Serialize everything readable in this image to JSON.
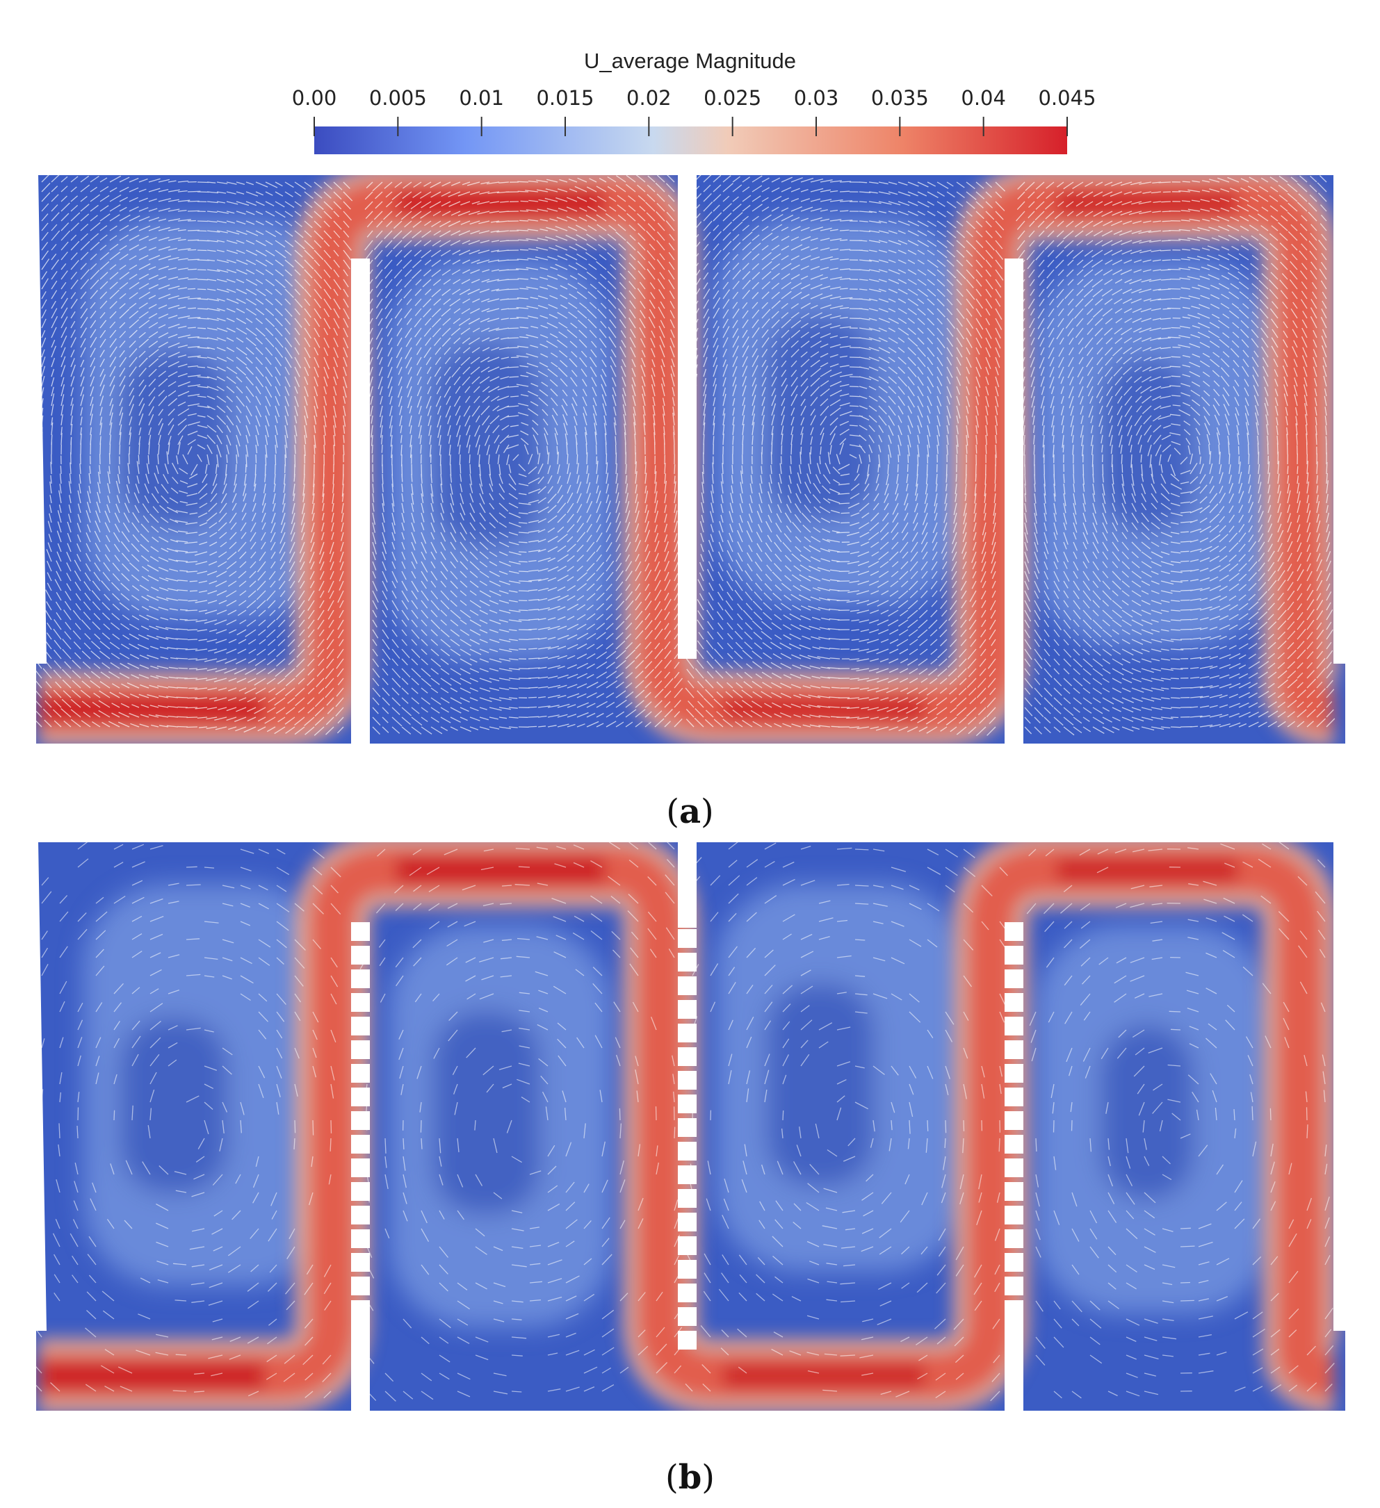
{
  "colorbar": {
    "title": "U_average Magnitude",
    "ticks": [
      "0.00",
      "0.005",
      "0.01",
      "0.015",
      "0.02",
      "0.025",
      "0.03",
      "0.035",
      "0.04",
      "0.045"
    ],
    "min": 0.0,
    "max": 0.045,
    "colormap": [
      "#3b4cc0",
      "#7396f5",
      "#c8d9ef",
      "#f1cbb8",
      "#ee8468",
      "#d6202a"
    ]
  },
  "panels": [
    {
      "label": "a",
      "perforated_baffles": false
    },
    {
      "label": "b",
      "perforated_baffles": true
    }
  ],
  "colors": {
    "low": "#3b5cc4",
    "high": "#d92a2f",
    "vector": "#ffffff"
  }
}
